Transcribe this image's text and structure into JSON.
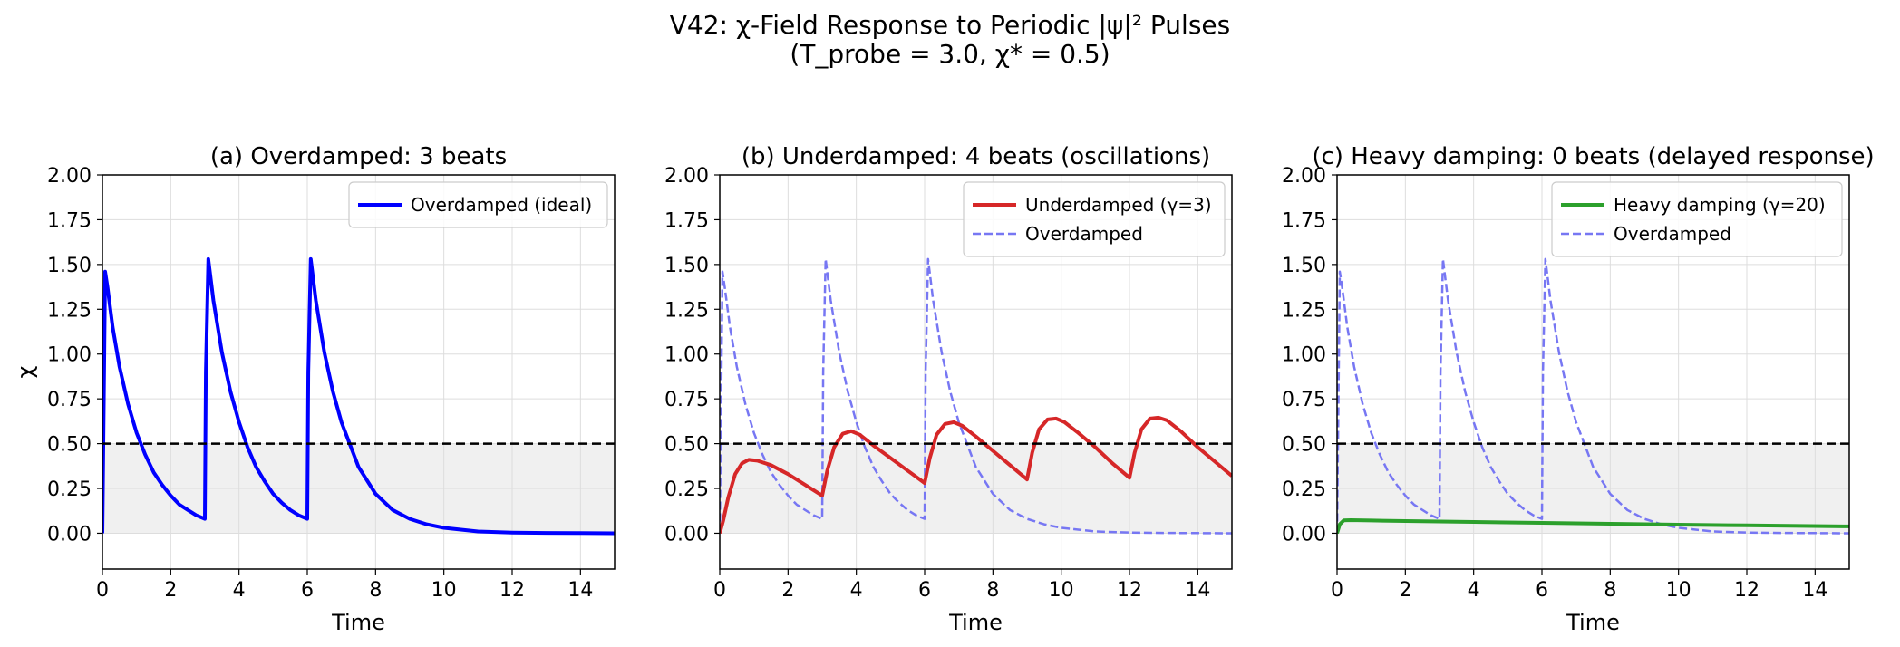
{
  "figure": {
    "title_line1": "V42: χ-Field Response to Periodic |ψ|² Pulses",
    "title_line2": "(T_probe = 3.0, χ* = 0.5)"
  },
  "colors": {
    "overdamped_ideal": "#0000ff",
    "underdamped": "#d62728",
    "heavy": "#2ca02c",
    "overdamped_ref": "#7777f3",
    "threshold": "#000000",
    "shade": "#f0f0f0",
    "grid": "#dddddd"
  },
  "chart_data": [
    {
      "type": "line",
      "title": "(a) Overdamped: 3 beats",
      "xlabel": "Time",
      "ylabel": "χ",
      "xlim": [
        0,
        15
      ],
      "ylim": [
        -0.2,
        2.0
      ],
      "xticks": [
        0,
        2,
        4,
        6,
        8,
        10,
        12,
        14
      ],
      "xtick_labels": [
        "0",
        "2",
        "4",
        "6",
        "8",
        "10",
        "12",
        "14"
      ],
      "yticks": [
        0.0,
        0.25,
        0.5,
        0.75,
        1.0,
        1.25,
        1.5,
        1.75,
        2.0
      ],
      "ytick_labels": [
        "0.00",
        "0.25",
        "0.50",
        "0.75",
        "1.00",
        "1.25",
        "1.50",
        "1.75",
        "2.00"
      ],
      "threshold": 0.5,
      "shade_below": [
        0,
        0.5
      ],
      "grid": true,
      "legend_position": "top-right",
      "series": [
        {
          "name": "Overdamped (ideal)",
          "color_key": "overdamped_ideal",
          "style": "solid",
          "width": 4,
          "x": [
            0,
            0.08,
            0.15,
            0.3,
            0.5,
            0.75,
            1,
            1.25,
            1.5,
            1.75,
            2,
            2.25,
            2.5,
            2.75,
            3.0,
            3.03,
            3.1,
            3.25,
            3.5,
            3.75,
            4,
            4.25,
            4.5,
            4.75,
            5,
            5.25,
            5.5,
            5.75,
            6.0,
            6.03,
            6.1,
            6.25,
            6.5,
            6.75,
            7,
            7.5,
            8,
            8.5,
            9,
            9.5,
            10,
            10.5,
            11,
            12,
            13,
            14,
            15
          ],
          "y": [
            0,
            1.46,
            1.37,
            1.15,
            0.93,
            0.72,
            0.56,
            0.44,
            0.34,
            0.27,
            0.21,
            0.16,
            0.13,
            0.1,
            0.08,
            0.9,
            1.53,
            1.3,
            1.01,
            0.79,
            0.62,
            0.48,
            0.37,
            0.29,
            0.22,
            0.17,
            0.13,
            0.1,
            0.08,
            0.9,
            1.53,
            1.3,
            1.01,
            0.79,
            0.62,
            0.37,
            0.22,
            0.13,
            0.08,
            0.05,
            0.03,
            0.02,
            0.01,
            0.004,
            0.002,
            0.001,
            0.0
          ]
        }
      ]
    },
    {
      "type": "line",
      "title": "(b) Underdamped: 4 beats (oscillations)",
      "xlabel": "Time",
      "ylabel": "",
      "xlim": [
        0,
        15
      ],
      "ylim": [
        -0.2,
        2.0
      ],
      "xticks": [
        0,
        2,
        4,
        6,
        8,
        10,
        12,
        14
      ],
      "xtick_labels": [
        "0",
        "2",
        "4",
        "6",
        "8",
        "10",
        "12",
        "14"
      ],
      "yticks": [
        0.0,
        0.25,
        0.5,
        0.75,
        1.0,
        1.25,
        1.5,
        1.75,
        2.0
      ],
      "ytick_labels": [
        "0.00",
        "0.25",
        "0.50",
        "0.75",
        "1.00",
        "1.25",
        "1.50",
        "1.75",
        "2.00"
      ],
      "threshold": 0.5,
      "shade_below": [
        0,
        0.5
      ],
      "grid": true,
      "legend_position": "top-right",
      "series": [
        {
          "name": "Underdamped (γ=3)",
          "color_key": "underdamped",
          "style": "solid",
          "width": 4,
          "x": [
            0,
            0.1,
            0.25,
            0.45,
            0.65,
            0.85,
            1.1,
            1.5,
            2,
            2.5,
            3.0,
            3.15,
            3.35,
            3.6,
            3.85,
            4.1,
            4.5,
            5,
            5.5,
            6.0,
            6.15,
            6.35,
            6.6,
            6.85,
            7.1,
            7.5,
            8,
            8.5,
            9.0,
            9.15,
            9.35,
            9.6,
            9.85,
            10.1,
            10.5,
            11,
            11.5,
            12.0,
            12.15,
            12.35,
            12.6,
            12.85,
            13.1,
            13.5,
            14,
            14.5,
            15
          ],
          "y": [
            0,
            0.07,
            0.2,
            0.33,
            0.39,
            0.41,
            0.405,
            0.38,
            0.33,
            0.27,
            0.21,
            0.35,
            0.48,
            0.555,
            0.57,
            0.55,
            0.49,
            0.42,
            0.35,
            0.28,
            0.42,
            0.55,
            0.61,
            0.62,
            0.6,
            0.54,
            0.46,
            0.38,
            0.3,
            0.45,
            0.58,
            0.635,
            0.64,
            0.62,
            0.56,
            0.48,
            0.39,
            0.31,
            0.45,
            0.58,
            0.64,
            0.645,
            0.63,
            0.57,
            0.48,
            0.4,
            0.32
          ]
        },
        {
          "name": "Overdamped",
          "color_key": "overdamped_ref",
          "style": "dashed",
          "width": 2.5,
          "x": [
            0,
            0.08,
            0.15,
            0.3,
            0.5,
            0.75,
            1,
            1.25,
            1.5,
            1.75,
            2,
            2.25,
            2.5,
            2.75,
            3.0,
            3.03,
            3.1,
            3.25,
            3.5,
            3.75,
            4,
            4.25,
            4.5,
            4.75,
            5,
            5.25,
            5.5,
            5.75,
            6.0,
            6.03,
            6.1,
            6.25,
            6.5,
            6.75,
            7,
            7.5,
            8,
            8.5,
            9,
            9.5,
            10,
            10.5,
            11,
            12,
            13,
            14,
            15
          ],
          "y": [
            0,
            1.46,
            1.37,
            1.15,
            0.93,
            0.72,
            0.56,
            0.44,
            0.34,
            0.27,
            0.21,
            0.16,
            0.13,
            0.1,
            0.08,
            0.9,
            1.53,
            1.3,
            1.01,
            0.79,
            0.62,
            0.48,
            0.37,
            0.29,
            0.22,
            0.17,
            0.13,
            0.1,
            0.08,
            0.9,
            1.53,
            1.3,
            1.01,
            0.79,
            0.62,
            0.37,
            0.22,
            0.13,
            0.08,
            0.05,
            0.03,
            0.02,
            0.01,
            0.004,
            0.002,
            0.001,
            0.0
          ]
        }
      ]
    },
    {
      "type": "line",
      "title": "(c) Heavy damping: 0 beats (delayed response)",
      "xlabel": "Time",
      "ylabel": "",
      "xlim": [
        0,
        15
      ],
      "ylim": [
        -0.2,
        2.0
      ],
      "xticks": [
        0,
        2,
        4,
        6,
        8,
        10,
        12,
        14
      ],
      "xtick_labels": [
        "0",
        "2",
        "4",
        "6",
        "8",
        "10",
        "12",
        "14"
      ],
      "yticks": [
        0.0,
        0.25,
        0.5,
        0.75,
        1.0,
        1.25,
        1.5,
        1.75,
        2.0
      ],
      "ytick_labels": [
        "0.00",
        "0.25",
        "0.50",
        "0.75",
        "1.00",
        "1.25",
        "1.50",
        "1.75",
        "2.00"
      ],
      "threshold": 0.5,
      "shade_below": [
        0,
        0.5
      ],
      "grid": true,
      "legend_position": "top-right",
      "series": [
        {
          "name": "Heavy damping (γ=20)",
          "color_key": "heavy",
          "style": "solid",
          "width": 4,
          "x": [
            0,
            0.08,
            0.2,
            0.4,
            1,
            2,
            4,
            6,
            8,
            10,
            12,
            15
          ],
          "y": [
            0,
            0.05,
            0.072,
            0.073,
            0.071,
            0.068,
            0.063,
            0.058,
            0.053,
            0.048,
            0.044,
            0.038
          ]
        },
        {
          "name": "Overdamped",
          "color_key": "overdamped_ref",
          "style": "dashed",
          "width": 2.5,
          "x": [
            0,
            0.08,
            0.15,
            0.3,
            0.5,
            0.75,
            1,
            1.25,
            1.5,
            1.75,
            2,
            2.25,
            2.5,
            2.75,
            3.0,
            3.03,
            3.1,
            3.25,
            3.5,
            3.75,
            4,
            4.25,
            4.5,
            4.75,
            5,
            5.25,
            5.5,
            5.75,
            6.0,
            6.03,
            6.1,
            6.25,
            6.5,
            6.75,
            7,
            7.5,
            8,
            8.5,
            9,
            9.5,
            10,
            10.5,
            11,
            12,
            13,
            14,
            15
          ],
          "y": [
            0,
            1.46,
            1.37,
            1.15,
            0.93,
            0.72,
            0.56,
            0.44,
            0.34,
            0.27,
            0.21,
            0.16,
            0.13,
            0.1,
            0.08,
            0.9,
            1.53,
            1.3,
            1.01,
            0.79,
            0.62,
            0.48,
            0.37,
            0.29,
            0.22,
            0.17,
            0.13,
            0.1,
            0.08,
            0.9,
            1.53,
            1.3,
            1.01,
            0.79,
            0.62,
            0.37,
            0.22,
            0.13,
            0.08,
            0.05,
            0.03,
            0.02,
            0.01,
            0.004,
            0.002,
            0.001,
            0.0
          ]
        }
      ]
    }
  ]
}
